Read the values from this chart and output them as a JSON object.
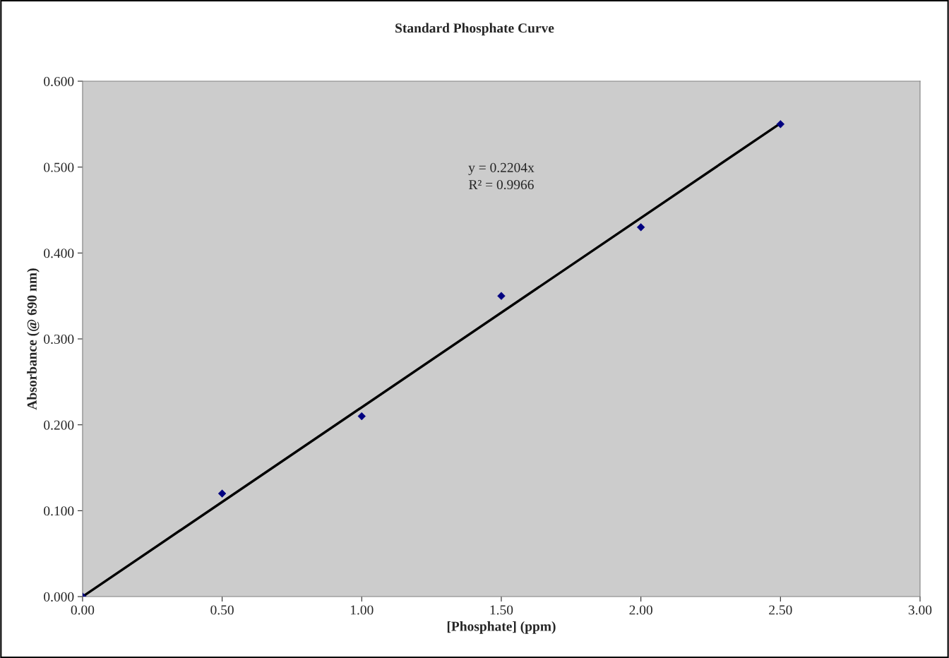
{
  "chart_data": {
    "type": "scatter",
    "title": "Standard Phosphate Curve",
    "xlabel": "[Phosphate] (ppm)",
    "ylabel": "Absorbance (@ 690 nm)",
    "x": [
      0,
      0.5,
      1.0,
      1.5,
      2.0,
      2.5
    ],
    "series": [
      {
        "color": "#000080",
        "marker": "diamond",
        "values": [
          0,
          0.12,
          0.21,
          0.35,
          0.43,
          0.55
        ]
      },
      {
        "type": "line",
        "color": "#000000",
        "marker": "none",
        "line_style": "solid",
        "x": [
          0,
          2.5
        ],
        "values": [
          0,
          0.551
        ]
      }
    ],
    "annotations": [
      "y = 0.2204x",
      "R² = 0.9966"
    ],
    "xlim": [
      0,
      3
    ],
    "ylim": [
      0,
      0.6
    ],
    "xticks": [
      {
        "value": 0,
        "label": "0.00"
      },
      {
        "value": 0.5,
        "label": "0.50"
      },
      {
        "value": 1,
        "label": "1.00"
      },
      {
        "value": 1.5,
        "label": "1.50"
      },
      {
        "value": 2,
        "label": "2.00"
      },
      {
        "value": 2.5,
        "label": "2.50"
      },
      {
        "value": 3,
        "label": "3.00"
      }
    ],
    "yticks": [
      {
        "value": 0,
        "label": "0.000"
      },
      {
        "value": 0.1,
        "label": "0.100"
      },
      {
        "value": 0.2,
        "label": "0.200"
      },
      {
        "value": 0.3,
        "label": "0.300"
      },
      {
        "value": 0.4,
        "label": "0.400"
      },
      {
        "value": 0.5,
        "label": "0.500"
      },
      {
        "value": 0.6,
        "label": "0.600"
      }
    ],
    "legend": false
  }
}
